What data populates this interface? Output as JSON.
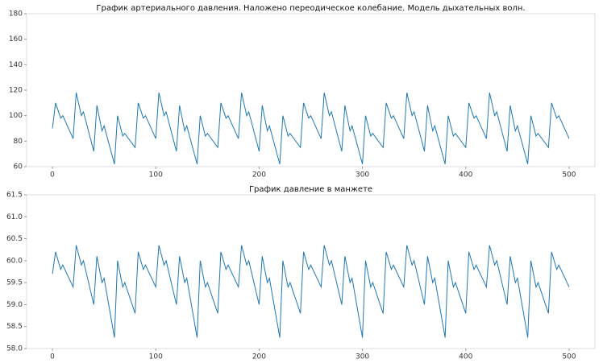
{
  "chart_data": [
    {
      "type": "line",
      "title": "График артериального давления. Наложено переодическое колебание. Модель дыхательных волн.",
      "color": "#1f77b4",
      "x": [
        0,
        3,
        8,
        10,
        20,
        23,
        28,
        30,
        40,
        43,
        48,
        50,
        60,
        63,
        68,
        70,
        80,
        83,
        88,
        90,
        100,
        103,
        108,
        110,
        120,
        123,
        128,
        130,
        140,
        143,
        148,
        150,
        160,
        163,
        168,
        170,
        180,
        183,
        188,
        190,
        200,
        203,
        208,
        210,
        220,
        223,
        228,
        230,
        240,
        243,
        248,
        250,
        260,
        263,
        268,
        270,
        280,
        283,
        288,
        290,
        300,
        303,
        308,
        310,
        320,
        323,
        328,
        330,
        340,
        343,
        348,
        350,
        360,
        363,
        368,
        370,
        380,
        383,
        388,
        390,
        400,
        403,
        408,
        410,
        420,
        423,
        428,
        430,
        440,
        443,
        448,
        450,
        460,
        463,
        468,
        470,
        480,
        483,
        488,
        490,
        500
      ],
      "values": [
        90,
        110,
        98,
        100,
        82,
        118,
        100,
        103,
        72,
        108,
        88,
        92,
        62,
        100,
        84,
        86,
        75,
        110,
        98,
        100,
        82,
        118,
        100,
        103,
        72,
        108,
        88,
        92,
        62,
        100,
        84,
        86,
        75,
        110,
        98,
        100,
        82,
        118,
        100,
        103,
        72,
        108,
        88,
        92,
        62,
        100,
        84,
        86,
        75,
        110,
        98,
        100,
        82,
        118,
        100,
        103,
        72,
        108,
        88,
        92,
        62,
        100,
        84,
        86,
        75,
        110,
        98,
        100,
        82,
        118,
        100,
        103,
        72,
        108,
        88,
        92,
        62,
        100,
        84,
        86,
        75,
        110,
        98,
        100,
        82,
        118,
        100,
        103,
        72,
        108,
        88,
        92,
        62,
        100,
        84,
        86,
        75,
        110,
        98,
        100,
        82
      ],
      "xlim": [
        -25,
        525
      ],
      "xticks": [
        0,
        100,
        200,
        300,
        400,
        500
      ],
      "ylim": [
        60,
        180
      ],
      "yticks": [
        60,
        80,
        100,
        120,
        140,
        160,
        180
      ]
    },
    {
      "type": "line",
      "title": "График давление в манжете",
      "color": "#1f77b4",
      "x": [
        0,
        3,
        8,
        10,
        20,
        23,
        28,
        30,
        40,
        43,
        48,
        50,
        60,
        63,
        68,
        70,
        80,
        83,
        88,
        90,
        100,
        103,
        108,
        110,
        120,
        123,
        128,
        130,
        140,
        143,
        148,
        150,
        160,
        163,
        168,
        170,
        180,
        183,
        188,
        190,
        200,
        203,
        208,
        210,
        220,
        223,
        228,
        230,
        240,
        243,
        248,
        250,
        260,
        263,
        268,
        270,
        280,
        283,
        288,
        290,
        300,
        303,
        308,
        310,
        320,
        323,
        328,
        330,
        340,
        343,
        348,
        350,
        360,
        363,
        368,
        370,
        380,
        383,
        388,
        390,
        400,
        403,
        408,
        410,
        420,
        423,
        428,
        430,
        440,
        443,
        448,
        450,
        460,
        463,
        468,
        470,
        480,
        483,
        488,
        490,
        500
      ],
      "values": [
        59.7,
        60.2,
        59.8,
        59.9,
        59.4,
        60.35,
        59.9,
        60,
        59,
        60.1,
        59.5,
        59.6,
        58.25,
        60,
        59.4,
        59.5,
        58.8,
        60.2,
        59.8,
        59.9,
        59.4,
        60.35,
        59.9,
        60,
        59,
        60.1,
        59.5,
        59.6,
        58.25,
        60,
        59.4,
        59.5,
        58.8,
        60.2,
        59.8,
        59.9,
        59.4,
        60.35,
        59.9,
        60,
        59,
        60.1,
        59.5,
        59.6,
        58.25,
        60,
        59.4,
        59.5,
        58.8,
        60.2,
        59.8,
        59.9,
        59.4,
        60.35,
        59.9,
        60,
        59,
        60.1,
        59.5,
        59.6,
        58.25,
        60,
        59.4,
        59.5,
        58.8,
        60.2,
        59.8,
        59.9,
        59.4,
        60.35,
        59.9,
        60,
        59,
        60.1,
        59.5,
        59.6,
        58.25,
        60,
        59.4,
        59.5,
        58.8,
        60.2,
        59.8,
        59.9,
        59.4,
        60.35,
        59.9,
        60,
        59,
        60.1,
        59.5,
        59.6,
        58.25,
        60,
        59.4,
        59.5,
        58.8,
        60.2,
        59.8,
        59.9,
        59.4
      ],
      "xlim": [
        -25,
        525
      ],
      "xticks": [
        0,
        100,
        200,
        300,
        400,
        500
      ],
      "ylim": [
        58,
        61.5
      ],
      "yticks": [
        {
          "value": 58,
          "label": "58.0"
        },
        {
          "value": 58.5,
          "label": "58.5"
        },
        {
          "value": 59,
          "label": "59.0"
        },
        {
          "value": 59.5,
          "label": "59.5"
        },
        {
          "value": 60,
          "label": "60.0"
        },
        {
          "value": 60.5,
          "label": "60.5"
        },
        {
          "value": 61,
          "label": "61.0"
        },
        {
          "value": 61.5,
          "label": "61.5"
        }
      ]
    }
  ]
}
